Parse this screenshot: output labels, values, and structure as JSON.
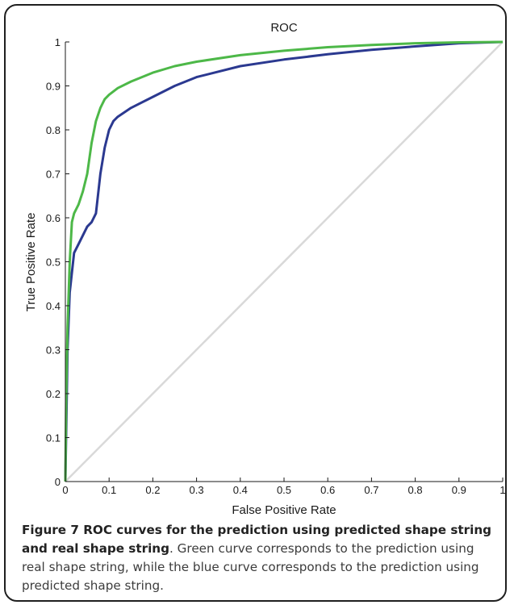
{
  "chart_data": {
    "type": "line",
    "title": "ROC",
    "xlabel": "False Positive Rate",
    "ylabel": "True Positive Rate",
    "xlim": [
      0,
      1
    ],
    "ylim": [
      0,
      1
    ],
    "x_ticks": [
      "0",
      "0.1",
      "0.2",
      "0.3",
      "0.4",
      "0.5",
      "0.6",
      "0.7",
      "0.8",
      "0.9",
      "1"
    ],
    "y_ticks": [
      "0",
      "0.1",
      "0.2",
      "0.3",
      "0.4",
      "0.5",
      "0.6",
      "0.7",
      "0.8",
      "0.9",
      "1"
    ],
    "grid": false,
    "series": [
      {
        "color": "#4db848",
        "x": [
          0,
          0.002,
          0.005,
          0.01,
          0.015,
          0.02,
          0.03,
          0.04,
          0.05,
          0.06,
          0.07,
          0.08,
          0.09,
          0.1,
          0.12,
          0.15,
          0.2,
          0.25,
          0.3,
          0.4,
          0.5,
          0.6,
          0.7,
          0.8,
          0.9,
          1
        ],
        "y": [
          0,
          0.2,
          0.35,
          0.5,
          0.59,
          0.61,
          0.63,
          0.66,
          0.7,
          0.77,
          0.82,
          0.85,
          0.87,
          0.88,
          0.895,
          0.91,
          0.93,
          0.945,
          0.955,
          0.97,
          0.98,
          0.988,
          0.993,
          0.997,
          0.999,
          1
        ]
      },
      {
        "color": "#2b3990",
        "x": [
          0,
          0.005,
          0.01,
          0.02,
          0.03,
          0.04,
          0.05,
          0.06,
          0.07,
          0.08,
          0.09,
          0.1,
          0.11,
          0.12,
          0.15,
          0.2,
          0.25,
          0.3,
          0.4,
          0.5,
          0.6,
          0.7,
          0.8,
          0.9,
          1
        ],
        "y": [
          0,
          0.3,
          0.43,
          0.52,
          0.54,
          0.56,
          0.58,
          0.59,
          0.61,
          0.7,
          0.76,
          0.8,
          0.82,
          0.83,
          0.85,
          0.875,
          0.9,
          0.92,
          0.945,
          0.96,
          0.972,
          0.982,
          0.99,
          0.997,
          1
        ]
      },
      {
        "color": "#d9d9d9",
        "x": [
          0,
          1
        ],
        "y": [
          0,
          1
        ]
      }
    ]
  },
  "caption": {
    "label": "Figure 7",
    "title": " ROC curves for the prediction using predicted shape string and real shape string",
    "body": ". Green curve corresponds to the prediction using real shape string, while the blue curve corresponds to the prediction using predicted shape string."
  }
}
